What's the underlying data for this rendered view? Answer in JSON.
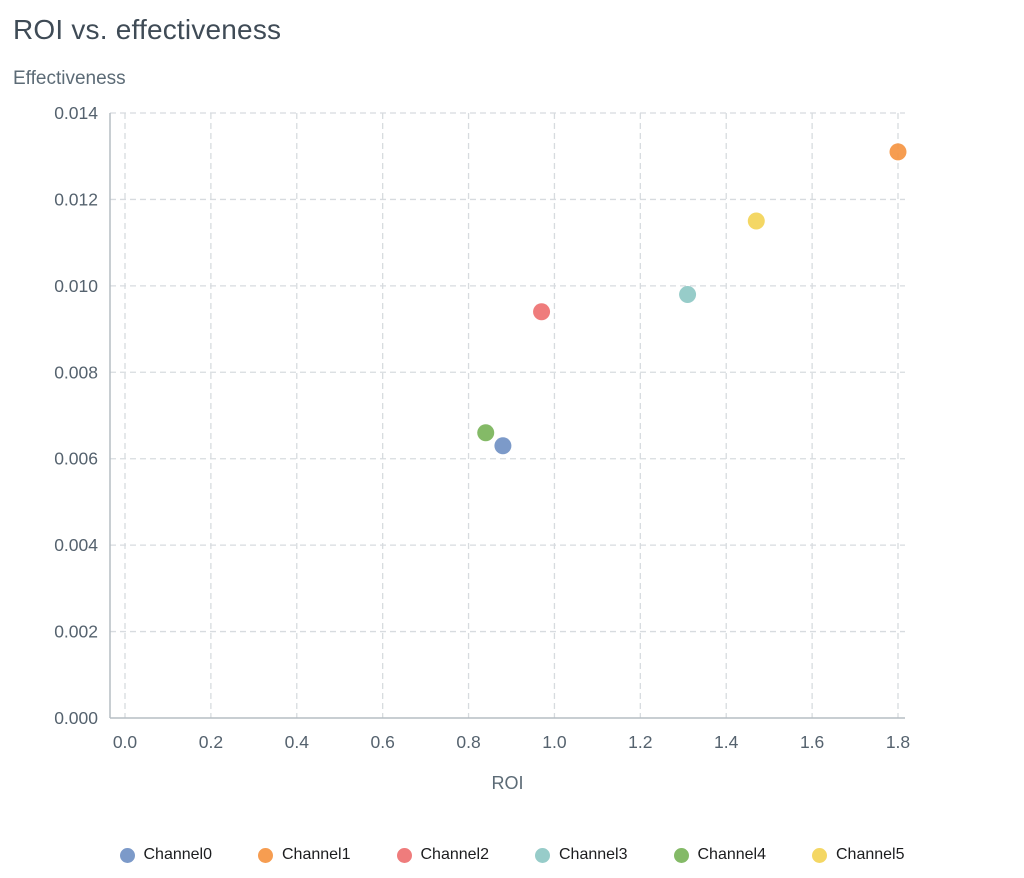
{
  "chart_data": {
    "type": "scatter",
    "title": "ROI vs. effectiveness",
    "xlabel": "ROI",
    "ylabel": "Effectiveness",
    "xlim": [
      0,
      1.8
    ],
    "ylim": [
      0,
      0.014
    ],
    "x_ticks": [
      0.0,
      0.2,
      0.4,
      0.6,
      0.8,
      1.0,
      1.2,
      1.4,
      1.6,
      1.8
    ],
    "x_tick_labels": [
      "0.0",
      "0.2",
      "0.4",
      "0.6",
      "0.8",
      "1.0",
      "1.2",
      "1.4",
      "1.6",
      "1.8"
    ],
    "y_ticks": [
      0.0,
      0.002,
      0.004,
      0.006,
      0.008,
      0.01,
      0.012,
      0.014
    ],
    "y_tick_labels": [
      "0.000",
      "0.002",
      "0.004",
      "0.006",
      "0.008",
      "0.010",
      "0.012",
      "0.014"
    ],
    "grid": true,
    "grid_style": "dashed",
    "legend_position": "bottom",
    "series": [
      {
        "name": "Channel0",
        "color": "#6e8fc3",
        "x": 0.88,
        "y": 0.0063
      },
      {
        "name": "Channel1",
        "color": "#f5923e",
        "x": 1.8,
        "y": 0.0131
      },
      {
        "name": "Channel2",
        "color": "#ed6e6e",
        "x": 0.97,
        "y": 0.0094
      },
      {
        "name": "Channel3",
        "color": "#8cc6c3",
        "x": 1.31,
        "y": 0.0098
      },
      {
        "name": "Channel4",
        "color": "#77b356",
        "x": 0.84,
        "y": 0.0066
      },
      {
        "name": "Channel5",
        "color": "#f3d353",
        "x": 1.47,
        "y": 0.0115
      }
    ]
  }
}
